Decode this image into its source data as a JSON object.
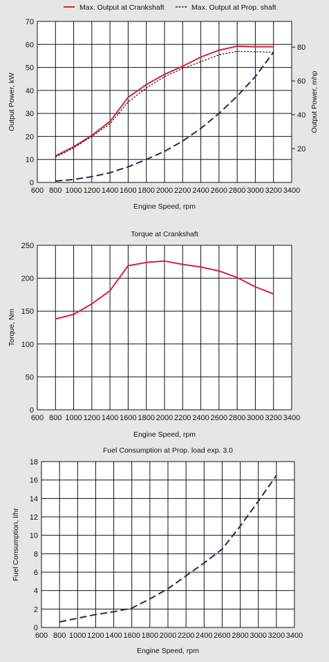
{
  "chart_data": [
    {
      "type": "line",
      "title": "",
      "xlabel": "Engine Speed, rpm",
      "ylabel": "Output Power, kW",
      "ylabel_right": "Output Power, mhp",
      "xlim": [
        600,
        3400
      ],
      "ylim": [
        0,
        70
      ],
      "ylim_right": [
        0,
        95.2
      ],
      "xticks": [
        600,
        800,
        1000,
        1200,
        1400,
        1600,
        1800,
        2000,
        2200,
        2400,
        2600,
        2800,
        3000,
        3200,
        3400
      ],
      "yticks": [
        0,
        10,
        20,
        30,
        40,
        50,
        60,
        70
      ],
      "yticks_right": [
        20,
        40,
        60,
        80
      ],
      "grid": true,
      "legend": "top",
      "legend_items": [
        {
          "label": "Max. Output at Crankshaft",
          "color": "#d81f3f",
          "style": "solid"
        },
        {
          "label": "Max. Output at Prop. shaft",
          "color": "#111111",
          "style": "dotted"
        }
      ],
      "series": [
        {
          "name": "Max. Output at Crankshaft",
          "color": "#d81f3f",
          "style": "solid",
          "x": [
            800,
            1000,
            1200,
            1400,
            1600,
            1800,
            2000,
            2200,
            2400,
            2600,
            2800,
            3000,
            3200
          ],
          "y": [
            11.5,
            15.5,
            20.5,
            26.5,
            37,
            42.5,
            47,
            50.5,
            54.5,
            57.5,
            59.2,
            59,
            59
          ]
        },
        {
          "name": "Max. Output at Prop. shaft",
          "color": "#111111",
          "style": "dotted",
          "x": [
            800,
            1000,
            1200,
            1400,
            1600,
            1800,
            2000,
            2200,
            2400,
            2600,
            2800,
            3000,
            3200
          ],
          "y": [
            11,
            15,
            20,
            25.5,
            35,
            41,
            46,
            49.5,
            52.5,
            55.5,
            57,
            56.8,
            56.6
          ]
        },
        {
          "color": "#1f2a5c",
          "style": "dashed",
          "x": [
            800,
            1000,
            1200,
            1400,
            1600,
            1800,
            2000,
            2200,
            2400,
            2600,
            2800,
            3000,
            3200
          ],
          "y": [
            0.6,
            1.3,
            2.5,
            4.2,
            6.8,
            10,
            13.5,
            18,
            23.5,
            30,
            37.5,
            46,
            56.6
          ]
        }
      ]
    },
    {
      "type": "line",
      "title": "Torque at Crankshaft",
      "xlabel": "Engine Speed, rpm",
      "ylabel": "Torque, Nm",
      "xlim": [
        600,
        3400
      ],
      "ylim": [
        0,
        250
      ],
      "xticks": [
        600,
        800,
        1000,
        1200,
        1400,
        1600,
        1800,
        2000,
        2200,
        2400,
        2600,
        2800,
        3000,
        3200,
        3400
      ],
      "yticks": [
        0,
        50,
        100,
        150,
        200,
        250
      ],
      "grid": true,
      "series": [
        {
          "color": "#d81f3f",
          "style": "solid",
          "x": [
            800,
            1000,
            1200,
            1400,
            1600,
            1800,
            2000,
            2200,
            2400,
            2600,
            2800,
            3000,
            3200
          ],
          "y": [
            138,
            145,
            161,
            181,
            219,
            224,
            226,
            221,
            217,
            211,
            201,
            187,
            176
          ]
        }
      ]
    },
    {
      "type": "line",
      "title": "Fuel Consumption at Prop. load exp. 3.0",
      "xlabel": "Engine Speed, rpm",
      "ylabel": "Fuel Consumption, l/hr",
      "xlim": [
        600,
        3400
      ],
      "ylim": [
        0,
        18
      ],
      "xticks": [
        600,
        800,
        1000,
        1200,
        1400,
        1600,
        1800,
        2000,
        2200,
        2400,
        2600,
        2800,
        3000,
        3200,
        3400
      ],
      "yticks": [
        0,
        2,
        4,
        6,
        8,
        10,
        12,
        14,
        16,
        18
      ],
      "grid": true,
      "series": [
        {
          "color": "#1f2a5c",
          "style": "dashed",
          "x": [
            800,
            1000,
            1200,
            1400,
            1600,
            1800,
            2000,
            2200,
            2400,
            2600,
            2800,
            3000,
            3200
          ],
          "y": [
            0.6,
            1.0,
            1.4,
            1.7,
            2.1,
            3.1,
            4.2,
            5.6,
            7.0,
            8.5,
            11.0,
            13.7,
            16.5
          ]
        }
      ]
    }
  ]
}
